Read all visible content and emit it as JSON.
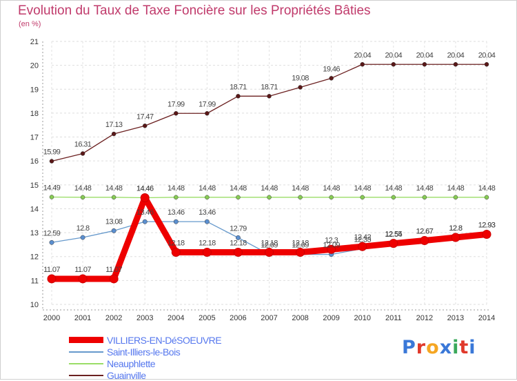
{
  "chart_data": {
    "type": "line",
    "title": "Evolution du Taux de Taxe Foncière sur les Propriétés Bâties",
    "unit_label": "(en %)",
    "ylim": [
      10,
      21
    ],
    "yticks": [
      "10",
      "11",
      "12",
      "13",
      "14",
      "15",
      "16",
      "17",
      "18",
      "19",
      "20",
      "21"
    ],
    "x": [
      "2000",
      "2001",
      "2002",
      "2003",
      "2004",
      "2005",
      "2006",
      "2007",
      "2008",
      "2009",
      "2010",
      "2011",
      "2012",
      "2013",
      "2014"
    ],
    "series": [
      {
        "name": "Guainville",
        "color": "#6b2020",
        "marker": "#5a1818",
        "values": [
          15.99,
          16.31,
          17.13,
          17.47,
          17.99,
          17.99,
          18.71,
          18.71,
          19.08,
          19.46,
          20.04,
          20.04,
          20.04,
          20.04,
          20.04
        ],
        "labels": [
          "15.99",
          "16.31",
          "17.13",
          "17.47",
          "17.99",
          "17.99",
          "18.71",
          "18.71",
          "19.08",
          "19.46",
          "20.04",
          "20.04",
          "20.04",
          "20.04",
          "20.04"
        ]
      },
      {
        "name": "Neauphlette",
        "color": "#99dd66",
        "marker": "#88cc55",
        "values": [
          14.49,
          14.48,
          14.48,
          14.46,
          14.48,
          14.48,
          14.48,
          14.48,
          14.48,
          14.48,
          14.48,
          14.48,
          14.48,
          14.48,
          14.48
        ],
        "labels": [
          "14.49",
          "14.48",
          "14.48",
          "14.46",
          "14.48",
          "14.48",
          "14.48",
          "14.48",
          "14.48",
          "14.48",
          "14.48",
          "14.48",
          "14.48",
          "14.48",
          "14.48"
        ]
      },
      {
        "name": "Saint-Illiers-le-Bois",
        "color": "#6699cc",
        "marker": "#5b8fd0",
        "values": [
          12.59,
          12.8,
          13.08,
          13.46,
          13.46,
          13.46,
          12.79,
          12.09,
          12.09,
          12.09,
          12.33,
          12.54,
          12.67,
          12.8,
          12.93
        ],
        "labels": [
          "12.59",
          "12.8",
          "13.08",
          "13.46",
          "13.46",
          "13.46",
          "12.79",
          "12.09",
          "12.09",
          "12.09",
          "12.33",
          "12.54",
          "12.67",
          "12.8",
          "12.93"
        ]
      },
      {
        "name": "VILLIERS-EN-DéSOEUVRE",
        "color": "#ee0000",
        "marker": "#ee0000",
        "values": [
          11.07,
          11.07,
          11.07,
          14.46,
          12.18,
          12.18,
          12.18,
          12.18,
          12.18,
          12.3,
          12.42,
          12.55,
          12.67,
          12.8,
          12.93
        ],
        "labels": [
          "11.07",
          "11.07",
          "11.07",
          "14.46",
          "12.18",
          "12.18",
          "12.18",
          "12.18",
          "12.18",
          "12.3",
          "12.42",
          "12.55",
          "12.67",
          "12.8",
          "12.93"
        ]
      }
    ],
    "legend": [
      "VILLIERS-EN-DéSOEUVRE",
      "Saint-Illiers-le-Bois",
      "Neauphlette",
      "Guainville"
    ]
  },
  "logo": {
    "text": "Proxiti"
  }
}
